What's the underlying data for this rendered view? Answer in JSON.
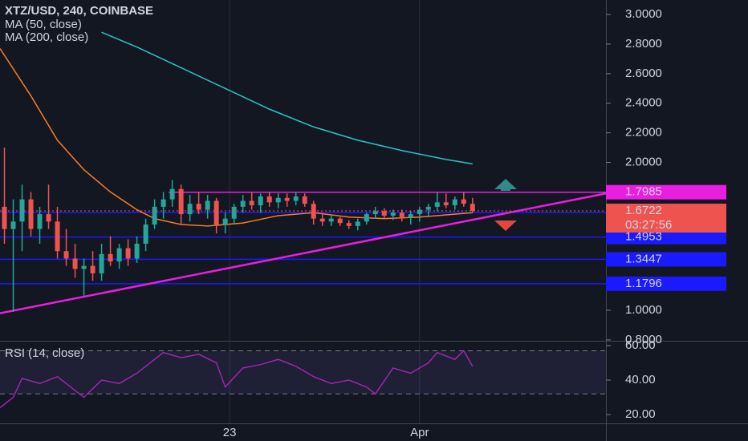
{
  "chart_data": {
    "type": "candlestick",
    "title": "XTZ/USD, 240, COINBASE",
    "up_color": "#26a69a",
    "down_color": "#ef5350",
    "xlim": [
      -0.5,
      68.1
    ],
    "xticks": [
      {
        "value": 25.5,
        "label": "23"
      },
      {
        "value": 47,
        "label": "Apr"
      }
    ],
    "ylim": [
      0.794,
      3.098
    ],
    "yticks": [
      {
        "value": 3.0,
        "label": "3.0000"
      },
      {
        "value": 2.8,
        "label": "2.8000"
      },
      {
        "value": 2.6,
        "label": "2.6000"
      },
      {
        "value": 2.4,
        "label": "2.4000"
      },
      {
        "value": 2.2,
        "label": "2.2000"
      },
      {
        "value": 2.0,
        "label": "2.0000"
      },
      {
        "value": 1.0,
        "label": "1.0000"
      },
      {
        "value": 0.8,
        "label": "0.8000"
      }
    ],
    "open": [
      1.7,
      1.55,
      1.6,
      1.75,
      1.55,
      1.65,
      1.6,
      1.4,
      1.35,
      1.28,
      1.3,
      1.25,
      1.38,
      1.33,
      1.42,
      1.35,
      1.45,
      1.58,
      1.7,
      1.75,
      1.82,
      1.65,
      1.72,
      1.68,
      1.74,
      1.58,
      1.62,
      1.7,
      1.74,
      1.71,
      1.77,
      1.73,
      1.76,
      1.74,
      1.77,
      1.72,
      1.62,
      1.6,
      1.62,
      1.59,
      1.57,
      1.6,
      1.65,
      1.67,
      1.64,
      1.66,
      1.63,
      1.65,
      1.68,
      1.7,
      1.73,
      1.71,
      1.75,
      1.72
    ],
    "high": [
      2.1,
      1.75,
      1.85,
      1.8,
      1.7,
      1.85,
      1.7,
      1.55,
      1.45,
      1.35,
      1.4,
      1.45,
      1.5,
      1.45,
      1.48,
      1.5,
      1.62,
      1.75,
      1.8,
      1.88,
      1.85,
      1.78,
      1.8,
      1.78,
      1.76,
      1.66,
      1.72,
      1.78,
      1.8,
      1.79,
      1.8,
      1.79,
      1.79,
      1.8,
      1.79,
      1.74,
      1.66,
      1.64,
      1.63,
      1.61,
      1.62,
      1.66,
      1.7,
      1.69,
      1.68,
      1.68,
      1.67,
      1.7,
      1.72,
      1.8,
      1.79,
      1.77,
      1.8,
      1.76
    ],
    "low": [
      1.45,
      0.99,
      1.4,
      1.5,
      1.45,
      1.55,
      1.35,
      1.3,
      1.22,
      1.1,
      1.2,
      1.2,
      1.3,
      1.28,
      1.3,
      1.32,
      1.4,
      1.55,
      1.62,
      1.7,
      1.58,
      1.6,
      1.65,
      1.62,
      1.52,
      1.52,
      1.58,
      1.66,
      1.68,
      1.66,
      1.7,
      1.69,
      1.7,
      1.71,
      1.7,
      1.58,
      1.57,
      1.57,
      1.57,
      1.55,
      1.54,
      1.58,
      1.62,
      1.62,
      1.61,
      1.6,
      1.58,
      1.6,
      1.64,
      1.67,
      1.69,
      1.68,
      1.7,
      1.66
    ],
    "close": [
      1.55,
      1.6,
      1.75,
      1.55,
      1.65,
      1.6,
      1.4,
      1.35,
      1.28,
      1.3,
      1.25,
      1.38,
      1.33,
      1.42,
      1.35,
      1.45,
      1.58,
      1.7,
      1.75,
      1.82,
      1.65,
      1.72,
      1.68,
      1.74,
      1.58,
      1.62,
      1.7,
      1.74,
      1.71,
      1.77,
      1.73,
      1.76,
      1.74,
      1.77,
      1.72,
      1.62,
      1.6,
      1.62,
      1.59,
      1.57,
      1.6,
      1.65,
      1.67,
      1.64,
      1.66,
      1.63,
      1.65,
      1.68,
      1.7,
      1.73,
      1.71,
      1.75,
      1.72,
      1.6722
    ],
    "countdown": "03:27:56",
    "series": [
      {
        "name": "MA (50, close)",
        "color": "#f57c2c",
        "x": [
          -0.5,
          3,
          6,
          9,
          12,
          15,
          17,
          20,
          23,
          27,
          31,
          35,
          39,
          43,
          47,
          51,
          53
        ],
        "values": [
          2.77,
          2.45,
          2.15,
          1.95,
          1.8,
          1.68,
          1.62,
          1.58,
          1.57,
          1.59,
          1.64,
          1.66,
          1.63,
          1.62,
          1.63,
          1.65,
          1.66
        ]
      },
      {
        "name": "MA (200, close)",
        "color": "#26c6c6",
        "x": [
          11,
          15,
          20,
          25,
          30,
          35,
          40,
          45,
          50,
          53
        ],
        "values": [
          2.88,
          2.78,
          2.64,
          2.5,
          2.36,
          2.24,
          2.15,
          2.08,
          2.02,
          1.99
        ]
      }
    ],
    "levels": [
      {
        "value": 1.7985,
        "color": "#e91ee0"
      },
      {
        "value": 1.6615,
        "color": "#1a1aff"
      },
      {
        "value": 1.4953,
        "color": "#1a1aff"
      },
      {
        "value": 1.3447,
        "color": "#1a1aff"
      },
      {
        "value": 1.1796,
        "color": "#1a1aff"
      }
    ],
    "trendline": {
      "color": "#e91ee0",
      "x": [
        -0.5,
        68.1
      ],
      "values": [
        0.98,
        1.79
      ]
    },
    "rsi": {
      "title": "RSI (14, close)",
      "color": "#9c27b0",
      "ylim": [
        14.9,
        62.8
      ],
      "yticks": [
        {
          "value": 60,
          "label": "60.00"
        },
        {
          "value": 40,
          "label": "40.00"
        },
        {
          "value": 20,
          "label": "20.00"
        }
      ],
      "bands": [
        57,
        32
      ],
      "x": [
        -0.5,
        1,
        2,
        4,
        6,
        8,
        9,
        11,
        13,
        15,
        17,
        18,
        20,
        22,
        24,
        25,
        27,
        29,
        31,
        33,
        35,
        37,
        39,
        41,
        42,
        44,
        46,
        48,
        49,
        51,
        52,
        53
      ],
      "values": [
        24,
        30,
        41,
        38,
        42,
        34,
        30,
        40,
        38,
        44,
        52,
        56,
        53,
        55,
        50,
        36,
        47,
        49,
        52,
        48,
        42,
        38,
        40,
        36,
        32,
        47,
        44,
        50,
        56,
        52,
        57,
        48
      ]
    }
  }
}
